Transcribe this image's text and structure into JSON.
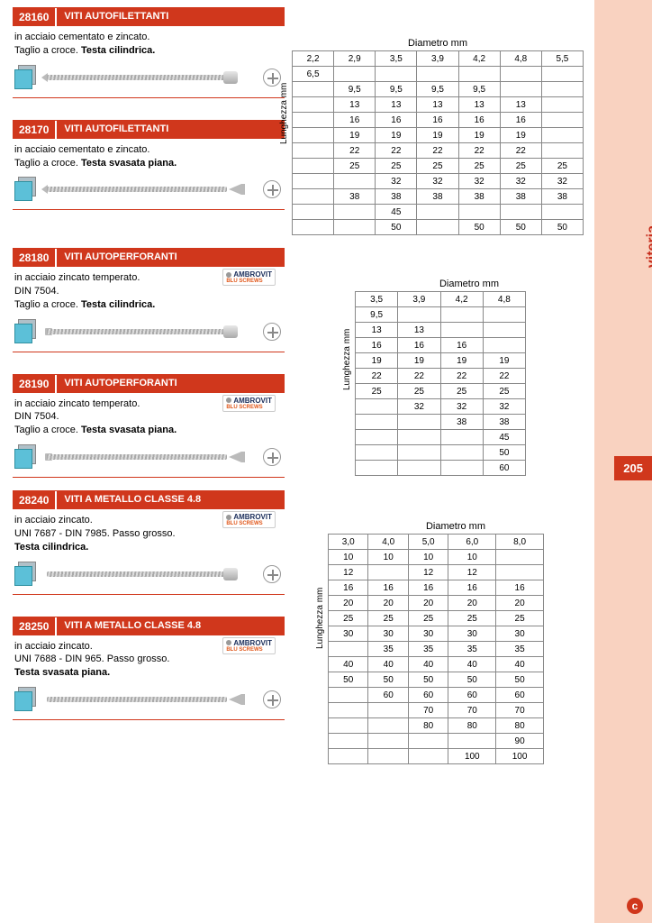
{
  "sidebar": {
    "category": "viteria",
    "page_number": "205",
    "accent_color": "#d0371c",
    "bg_color": "#f9d2c0"
  },
  "brand_logo": "AMBROVIT",
  "brand_sub": "BLU SCREWS",
  "axis_label": "Lunghezza mm",
  "diameter_label": "Diametro mm",
  "group1": {
    "products": [
      {
        "code": "28160",
        "title": "VITI AUTOFILETTANTI",
        "desc_line1": "in acciaio cementato e zincato.",
        "desc_line2": "Taglio a croce. ",
        "desc_bold": "Testa cilindrica.",
        "has_brand": false,
        "head": "cyl",
        "tip": "point"
      },
      {
        "code": "28170",
        "title": "VITI AUTOFILETTANTI",
        "desc_line1": "in acciaio cementato e zincato.",
        "desc_line2": "Taglio a croce. ",
        "desc_bold": "Testa svasata piana.",
        "has_brand": false,
        "head": "flat",
        "tip": "point"
      }
    ],
    "table": {
      "cols": [
        "2,2",
        "2,9",
        "3,5",
        "3,9",
        "4,2",
        "4,8",
        "5,5"
      ],
      "rows": [
        [
          "6,5",
          "",
          "",
          "",
          "",
          "",
          ""
        ],
        [
          "",
          "9,5",
          "9,5",
          "9,5",
          "9,5",
          "",
          ""
        ],
        [
          "",
          "13",
          "13",
          "13",
          "13",
          "13",
          ""
        ],
        [
          "",
          "16",
          "16",
          "16",
          "16",
          "16",
          ""
        ],
        [
          "",
          "19",
          "19",
          "19",
          "19",
          "19",
          ""
        ],
        [
          "",
          "22",
          "22",
          "22",
          "22",
          "22",
          ""
        ],
        [
          "",
          "25",
          "25",
          "25",
          "25",
          "25",
          "25"
        ],
        [
          "",
          "",
          "32",
          "32",
          "32",
          "32",
          "32"
        ],
        [
          "",
          "38",
          "38",
          "38",
          "38",
          "38",
          "38"
        ],
        [
          "",
          "",
          "45",
          "",
          "",
          "",
          ""
        ],
        [
          "",
          "",
          "50",
          "",
          "50",
          "50",
          "50"
        ]
      ]
    }
  },
  "group2": {
    "products": [
      {
        "code": "28180",
        "title": "VITI AUTOPERFORANTI",
        "desc_line1": "in acciaio zincato temperato.",
        "desc_line2": "DIN 7504.",
        "desc_line3": "Taglio a croce. ",
        "desc_bold": "Testa cilindrica.",
        "has_brand": true,
        "head": "cyl",
        "tip": "drill"
      },
      {
        "code": "28190",
        "title": "VITI AUTOPERFORANTI",
        "desc_line1": "in acciaio zincato temperato.",
        "desc_line2": "DIN 7504.",
        "desc_line3": "Taglio a croce. ",
        "desc_bold": "Testa svasata piana.",
        "has_brand": true,
        "head": "flat",
        "tip": "drill"
      }
    ],
    "table": {
      "cols": [
        "3,5",
        "3,9",
        "4,2",
        "4,8"
      ],
      "rows": [
        [
          "9,5",
          "",
          "",
          ""
        ],
        [
          "13",
          "13",
          "",
          ""
        ],
        [
          "16",
          "16",
          "16",
          ""
        ],
        [
          "19",
          "19",
          "19",
          "19"
        ],
        [
          "22",
          "22",
          "22",
          "22"
        ],
        [
          "25",
          "25",
          "25",
          "25"
        ],
        [
          "",
          "32",
          "32",
          "32"
        ],
        [
          "",
          "",
          "38",
          "38"
        ],
        [
          "",
          "",
          "",
          "45"
        ],
        [
          "",
          "",
          "",
          "50"
        ],
        [
          "",
          "",
          "",
          "60"
        ]
      ]
    }
  },
  "group3": {
    "products": [
      {
        "code": "28240",
        "title": "VITI A METALLO CLASSE 4.8",
        "desc_line1": "in acciaio zincato.",
        "desc_line2": "UNI 7687 - DIN 7985. Passo grosso.",
        "desc_bold": "Testa cilindrica.",
        "has_brand": true,
        "head": "cyl",
        "tip": "none"
      },
      {
        "code": "28250",
        "title": "VITI A METALLO CLASSE 4.8",
        "desc_line1": "in acciaio zincato.",
        "desc_line2": "UNI 7688 - DIN 965. Passo grosso.",
        "desc_bold": "Testa svasata piana.",
        "has_brand": true,
        "head": "flat",
        "tip": "none"
      }
    ],
    "table": {
      "cols": [
        "3,0",
        "4,0",
        "5,0",
        "6,0",
        "8,0"
      ],
      "rows": [
        [
          "10",
          "10",
          "10",
          "10",
          ""
        ],
        [
          "12",
          "",
          "12",
          "12",
          ""
        ],
        [
          "16",
          "16",
          "16",
          "16",
          "16"
        ],
        [
          "20",
          "20",
          "20",
          "20",
          "20"
        ],
        [
          "25",
          "25",
          "25",
          "25",
          "25"
        ],
        [
          "30",
          "30",
          "30",
          "30",
          "30"
        ],
        [
          "",
          "35",
          "35",
          "35",
          "35"
        ],
        [
          "40",
          "40",
          "40",
          "40",
          "40"
        ],
        [
          "50",
          "50",
          "50",
          "50",
          "50"
        ],
        [
          "",
          "60",
          "60",
          "60",
          "60"
        ],
        [
          "",
          "",
          "70",
          "70",
          "70"
        ],
        [
          "",
          "",
          "80",
          "80",
          "80"
        ],
        [
          "",
          "",
          "",
          "",
          "90"
        ],
        [
          "",
          "",
          "",
          "100",
          "100"
        ]
      ]
    }
  }
}
